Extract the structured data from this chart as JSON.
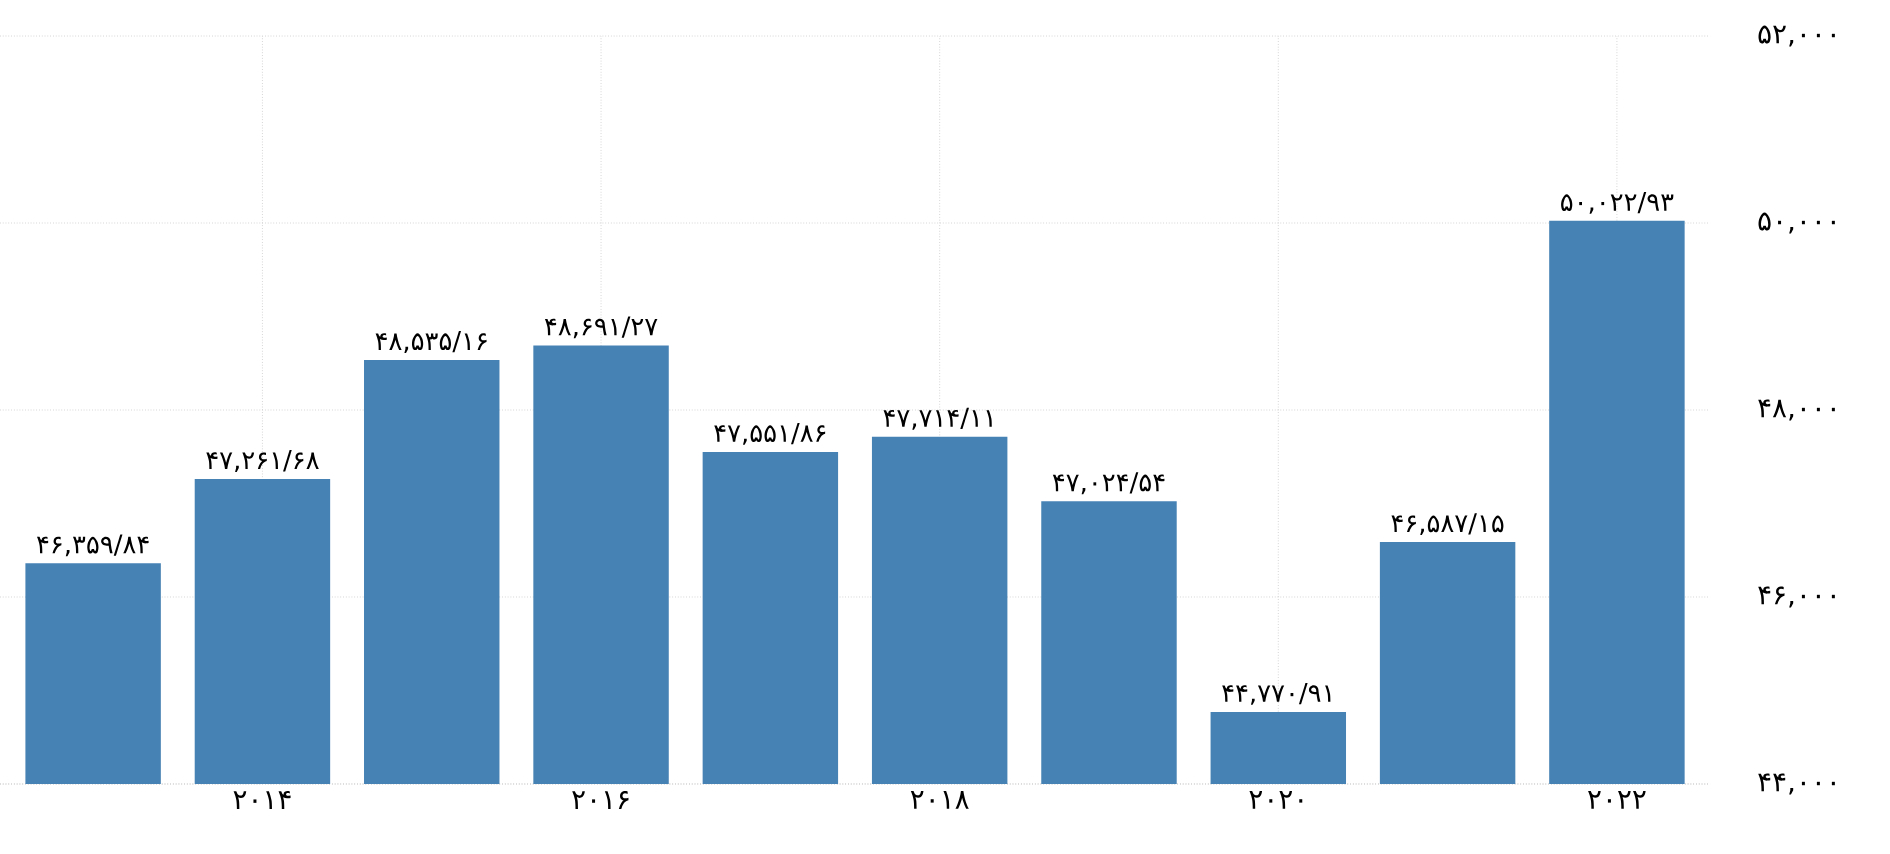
{
  "chart_data": {
    "type": "bar",
    "categories": [
      null,
      "۲۰۱۴",
      null,
      "۲۰۱۶",
      null,
      "۲۰۱۸",
      null,
      "۲۰۲۰",
      null,
      "۲۰۲۲"
    ],
    "values": [
      46359.84,
      47261.68,
      48535.16,
      48691.27,
      47551.86,
      47714.11,
      47024.54,
      44770.91,
      46587.15,
      50022.93
    ],
    "value_labels": [
      "۴۶,۳۵۹/۸۴",
      "۴۷,۲۶۱/۶۸",
      "۴۸,۵۳۵/۱۶",
      "۴۸,۶۹۱/۲۷",
      "۴۷,۵۵۱/۸۶",
      "۴۷,۷۱۴/۱۱",
      "۴۷,۰۲۴/۵۴",
      "۴۴,۷۷۰/۹۱",
      "۴۶,۵۸۷/۱۵",
      "۵۰,۰۲۲/۹۳"
    ],
    "color": "#4682b4",
    "ylim": [
      44000,
      52000
    ],
    "yticks": [
      {
        "value": 44000,
        "label": "۴۴,۰۰۰"
      },
      {
        "value": 46000,
        "label": "۴۶,۰۰۰"
      },
      {
        "value": 48000,
        "label": "۴۸,۰۰۰"
      },
      {
        "value": 50000,
        "label": "۵۰,۰۰۰"
      },
      {
        "value": 52000,
        "label": "۵۲,۰۰۰"
      }
    ],
    "grid": true
  }
}
